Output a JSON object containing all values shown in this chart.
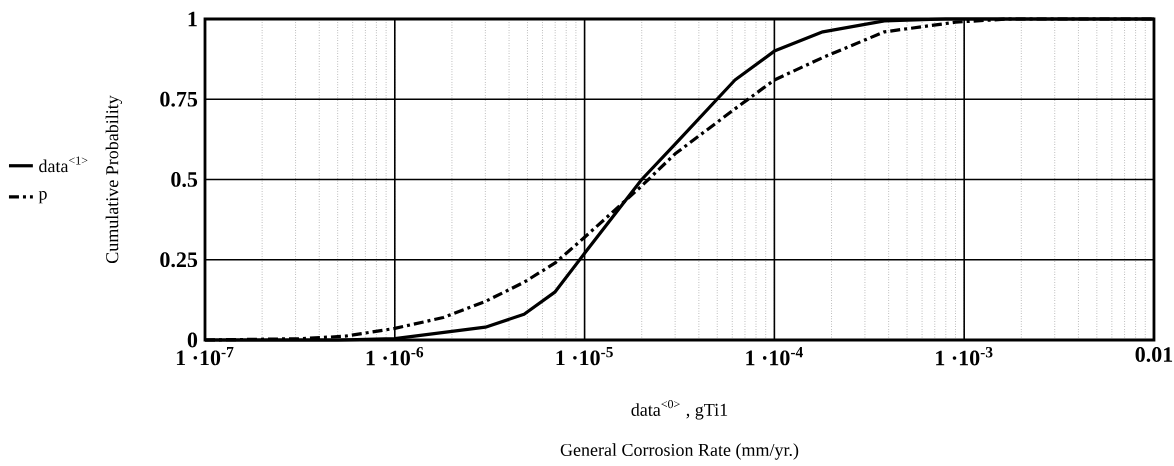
{
  "chart_data": {
    "type": "line",
    "xlabel": "General Corrosion Rate (mm/yr.)",
    "ylabel": "Cumulative Probability",
    "annotations": [
      "data$^{<0>}$ , gTi1"
    ],
    "log": "x",
    "xlim": [
      1e-07,
      0.01
    ],
    "ylim": [
      0,
      1
    ],
    "xticks": [
      {
        "value": 1e-07,
        "label": "1 ·10$^{-7}$"
      },
      {
        "value": 1e-06,
        "label": "1 ·10$^{-6}$"
      },
      {
        "value": 1e-05,
        "label": "1 ·10$^{-5}$"
      },
      {
        "value": 0.0001,
        "label": "1 ·10$^{-4}$"
      },
      {
        "value": 0.001,
        "label": "1 ·10$^{-3}$"
      },
      0.01
    ],
    "yticks": [
      0,
      0.25,
      0.5,
      0.75,
      1
    ],
    "grid": true,
    "legend": "left",
    "series": [
      {
        "name": "data$^{<1>}$",
        "color": "#000000",
        "line_style": "solid",
        "x": [
          1e-07,
          5e-07,
          1e-06,
          3e-06,
          4.8e-06,
          7e-06,
          1e-05,
          2e-05,
          3e-05,
          6.2e-05,
          0.0001,
          0.00018,
          0.00038,
          0.0008,
          0.01
        ],
        "values": [
          0,
          0,
          0.004,
          0.04,
          0.08,
          0.15,
          0.27,
          0.5,
          0.61,
          0.81,
          0.9,
          0.96,
          0.994,
          1,
          1
        ]
      },
      {
        "name": "p",
        "color": "#000000",
        "line_style": "dashed",
        "x": [
          1e-07,
          3.2e-07,
          5.5e-07,
          1e-06,
          1.8e-06,
          3e-06,
          4.8e-06,
          7e-06,
          1e-05,
          2e-05,
          3e-05,
          6.2e-05,
          0.0001,
          0.00018,
          0.00038,
          0.0009,
          0.0017,
          0.01
        ],
        "values": [
          0,
          0.004,
          0.012,
          0.036,
          0.07,
          0.12,
          0.18,
          0.24,
          0.32,
          0.48,
          0.58,
          0.72,
          0.81,
          0.88,
          0.96,
          0.99,
          1,
          1
        ]
      }
    ]
  }
}
